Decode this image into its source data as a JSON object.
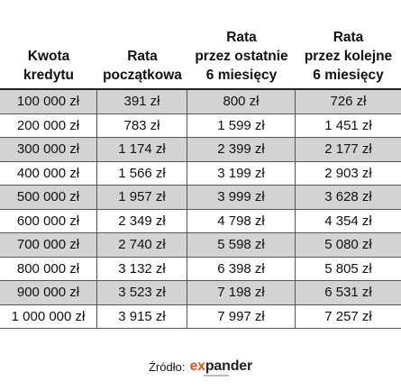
{
  "header": {
    "col1": [
      "Kwota",
      "kredytu"
    ],
    "col2": [
      "Rata",
      "początkowa"
    ],
    "col3": [
      "Rata",
      "przez ostatnie",
      "6 miesięcy"
    ],
    "col4": [
      "Rata",
      "przez kolejne",
      "6 miesięcy"
    ]
  },
  "rows": [
    [
      "100 000 zł",
      "391 zł",
      "800 zł",
      "726 zł"
    ],
    [
      "200 000 zł",
      "783 zł",
      "1 599 zł",
      "1 451 zł"
    ],
    [
      "300 000 zł",
      "1 174 zł",
      "2 399 zł",
      "2 177 zł"
    ],
    [
      "400 000 zł",
      "1 566 zł",
      "3 199 zł",
      "2 903 zł"
    ],
    [
      "500 000 zł",
      "1 957 zł",
      "3 999 zł",
      "3 628 zł"
    ],
    [
      "600 000 zł",
      "2 349 zł",
      "4 798 zł",
      "4 354 zł"
    ],
    [
      "700 000 zł",
      "2 740 zł",
      "5 598 zł",
      "5 080 zł"
    ],
    [
      "800 000 zł",
      "3 132 zł",
      "6 398 zł",
      "5 805 zł"
    ],
    [
      "900 000 zł",
      "3 523 zł",
      "7 198 zł",
      "6 531 zł"
    ],
    [
      "1 000 000 zł",
      "3 915 zł",
      "7 997 zł",
      "7 257 zł"
    ]
  ],
  "source": {
    "label": "Źródło:",
    "logo_prefix": "ex",
    "logo_rest": "pander",
    "logo_accent": "#e2561f"
  },
  "colors": {
    "shaded_row": "#d3d3d3",
    "text": "#111111"
  }
}
